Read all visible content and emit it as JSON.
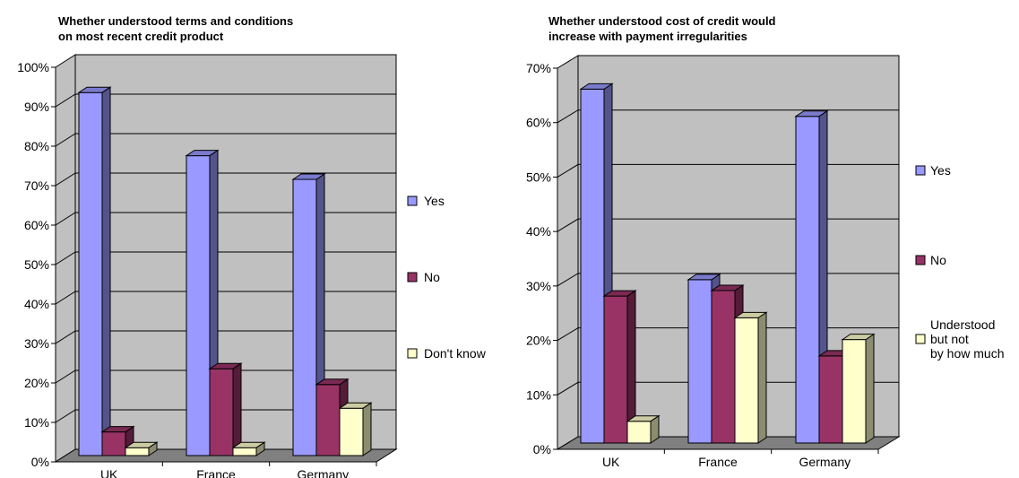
{
  "charts": [
    {
      "title_line1": "Whether understood terms and conditions",
      "title_line2": "on most recent credit product"
    },
    {
      "title_line1": "Whether understood cost of credit would",
      "title_line2": "increase with payment irregularities"
    }
  ],
  "colors": {
    "yes": "#9999ff",
    "no": "#993366",
    "third": "#ffffcc",
    "wall": "#c0c0c0",
    "floor": "#808080"
  },
  "chart_data": [
    {
      "type": "bar",
      "title": "Whether understood terms and conditions on most recent credit product",
      "categories": [
        "UK",
        "France",
        "Germany"
      ],
      "series": [
        {
          "name": "Yes",
          "values": [
            92,
            76,
            70
          ]
        },
        {
          "name": "No",
          "values": [
            6,
            22,
            18
          ]
        },
        {
          "name": "Don't know",
          "values": [
            2,
            2,
            12
          ]
        }
      ],
      "yticks": [
        "0%",
        "10%",
        "20%",
        "30%",
        "40%",
        "50%",
        "60%",
        "70%",
        "80%",
        "90%",
        "100%"
      ],
      "ylim": [
        0,
        100
      ],
      "grid": true,
      "legend": "right",
      "three_d": true
    },
    {
      "type": "bar",
      "title": "Whether understood cost of credit would increase with payment irregularities",
      "categories": [
        "UK",
        "France",
        "Germany"
      ],
      "series": [
        {
          "name": "Yes",
          "values": [
            65,
            30,
            60
          ]
        },
        {
          "name": "No",
          "values": [
            27,
            28,
            16
          ]
        },
        {
          "name": "Understood but not by how much",
          "legend_lines": [
            "Understood",
            "but not",
            "by how much"
          ],
          "values": [
            4,
            23,
            19
          ]
        }
      ],
      "yticks": [
        "0%",
        "10%",
        "20%",
        "30%",
        "40%",
        "50%",
        "60%",
        "70%"
      ],
      "ylim": [
        0,
        70
      ],
      "grid": true,
      "legend": "right",
      "three_d": true
    }
  ]
}
